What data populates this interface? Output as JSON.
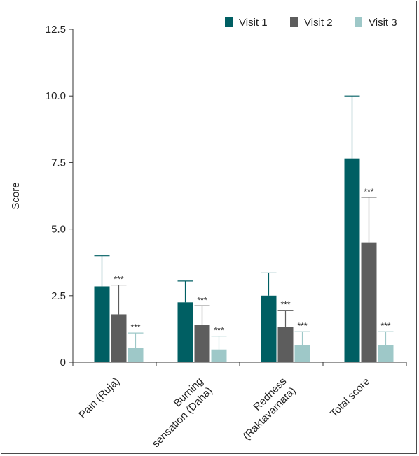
{
  "chart_data": {
    "type": "bar",
    "title": "",
    "xlabel": "",
    "ylabel": "Score",
    "ylim": [
      0,
      12.5
    ],
    "yticks": [
      "0",
      "2.5",
      "5.0",
      "7.5",
      "10.0",
      "12.5"
    ],
    "ytick_values": [
      0,
      2.5,
      5.0,
      7.5,
      10.0,
      12.5
    ],
    "categories": [
      [
        "Pain (Ruja)"
      ],
      [
        "Burning",
        "sensation (Daha)"
      ],
      [
        "Redness",
        "(Raktavarnata)"
      ],
      [
        "Total score"
      ]
    ],
    "series": [
      {
        "name": "Visit 1",
        "color": "#005f63",
        "values": [
          2.85,
          2.25,
          2.5,
          7.65
        ],
        "errors": [
          1.15,
          0.8,
          0.85,
          2.35
        ],
        "annotations": [
          "",
          "",
          "",
          ""
        ]
      },
      {
        "name": "Visit 2",
        "color": "#5d5d5d",
        "values": [
          1.8,
          1.4,
          1.33,
          4.5
        ],
        "errors": [
          1.1,
          0.72,
          0.62,
          1.7
        ],
        "annotations": [
          "***",
          "***",
          "***",
          "***"
        ]
      },
      {
        "name": "Visit 3",
        "color": "#9ec8c8",
        "values": [
          0.55,
          0.48,
          0.65,
          0.65
        ],
        "errors": [
          0.55,
          0.5,
          0.5,
          0.5
        ],
        "annotations": [
          "***",
          "***",
          "***",
          "***"
        ]
      }
    ],
    "legend_position": "top-right",
    "grid": false
  }
}
